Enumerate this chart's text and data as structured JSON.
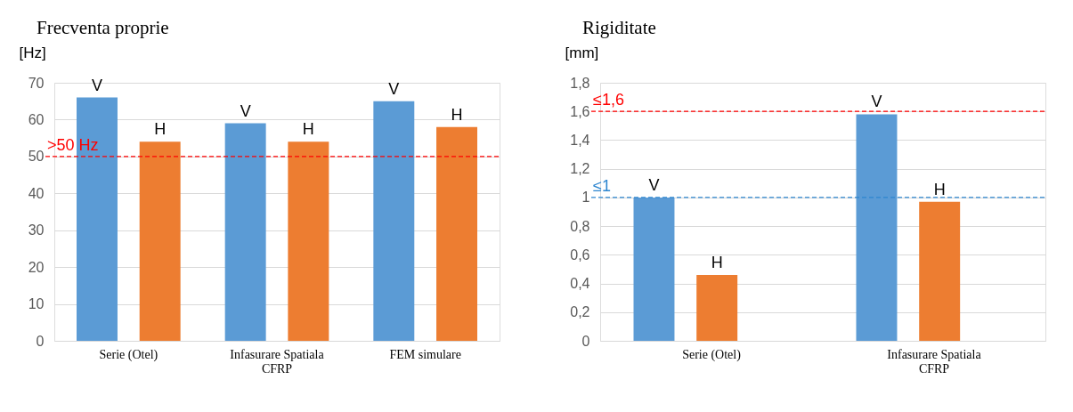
{
  "chart_data": [
    {
      "type": "bar",
      "title": "Frecventa proprie",
      "ylabel": "[Hz]",
      "categories": [
        "Serie (Otel)",
        "Infasurare Spatiala\nCFRP",
        "FEM simulare"
      ],
      "series": [
        {
          "name": "V",
          "color": "#5b9bd5",
          "values": [
            66,
            59,
            65
          ]
        },
        {
          "name": "H",
          "color": "#ed7d31",
          "values": [
            54,
            54,
            58
          ]
        }
      ],
      "ylim": [
        0,
        70
      ],
      "yticks": [
        0,
        10,
        20,
        30,
        40,
        50,
        60,
        70
      ],
      "grid": "y",
      "legend": false,
      "ref_lines": [
        {
          "axis": "y",
          "value": 50,
          "label": ">50 Hz",
          "color": "#ff0000",
          "line_style": "dashed"
        }
      ]
    },
    {
      "type": "bar",
      "title": "Rigiditate",
      "ylabel": "[mm]",
      "categories": [
        "Serie (Otel)",
        "Infasurare Spatiala\nCFRP"
      ],
      "series": [
        {
          "name": "V",
          "color": "#5b9bd5",
          "values": [
            1.0,
            1.58
          ]
        },
        {
          "name": "H",
          "color": "#ed7d31",
          "values": [
            0.46,
            0.97
          ]
        }
      ],
      "ylim": [
        0,
        1.8
      ],
      "yticks": [
        {
          "value": 0,
          "label": "0"
        },
        {
          "value": 0.2,
          "label": "0,2"
        },
        {
          "value": 0.4,
          "label": "0,4"
        },
        {
          "value": 0.6,
          "label": "0,6"
        },
        {
          "value": 0.8,
          "label": "0,8"
        },
        {
          "value": 1,
          "label": "1"
        },
        {
          "value": 1.2,
          "label": "1,2"
        },
        {
          "value": 1.4,
          "label": "1,4"
        },
        {
          "value": 1.6,
          "label": "1,6"
        },
        {
          "value": 1.8,
          "label": "1,8"
        }
      ],
      "grid": "y",
      "legend": false,
      "ref_lines": [
        {
          "axis": "y",
          "value": 1.6,
          "label": "≤1,6",
          "color": "#ff0000",
          "line_style": "dashed"
        },
        {
          "axis": "y",
          "value": 1,
          "label": "≤1",
          "color": "#2e86d0",
          "line_style": "dashed"
        }
      ]
    }
  ]
}
